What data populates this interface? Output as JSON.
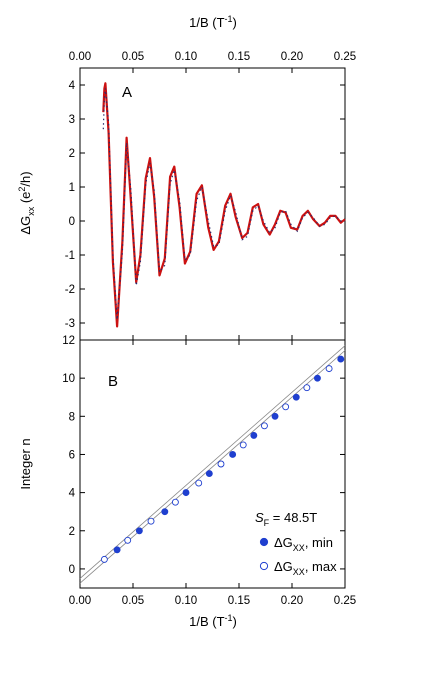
{
  "figure": {
    "top_axis_label": "1/B (T",
    "top_axis_label_sup": "-1",
    "top_axis_label_end": ")",
    "bottom_axis_label": "1/B (T",
    "bottom_axis_label_sup": "-1",
    "bottom_axis_label_end": ")"
  },
  "chart_data": [
    {
      "panel": "A",
      "type": "line",
      "ylabel_main": "ΔG",
      "ylabel_sub": "xx",
      "ylabel_units": " (e",
      "ylabel_units_sup": "2",
      "ylabel_units_end": "/h)",
      "xlim": [
        0.0,
        0.25
      ],
      "ylim": [
        -3.5,
        4.5
      ],
      "x_ticks": [
        "0.00",
        "0.05",
        "0.10",
        "0.15",
        "0.20",
        "0.25"
      ],
      "y_ticks": [
        "-3",
        "-2",
        "-1",
        "0",
        "1",
        "2",
        "3",
        "4"
      ],
      "x_tick_values": [
        0.0,
        0.05,
        0.1,
        0.15,
        0.2,
        0.25
      ],
      "y_tick_values": [
        -3,
        -2,
        -1,
        0,
        1,
        2,
        3,
        4
      ],
      "grid": false,
      "colors": {
        "fit": "#cc1111",
        "data": "#2a2a6a"
      },
      "series": [
        {
          "style": "solid-red",
          "x": [
            0.022,
            0.023,
            0.024,
            0.027,
            0.031,
            0.035,
            0.04,
            0.044,
            0.048,
            0.053,
            0.057,
            0.062,
            0.066,
            0.07,
            0.075,
            0.08,
            0.085,
            0.089,
            0.094,
            0.099,
            0.104,
            0.11,
            0.115,
            0.121,
            0.126,
            0.131,
            0.137,
            0.142,
            0.147,
            0.153,
            0.158,
            0.163,
            0.168,
            0.173,
            0.179,
            0.184,
            0.189,
            0.194,
            0.199,
            0.205,
            0.21,
            0.215,
            0.22,
            0.226,
            0.231,
            0.236,
            0.241,
            0.246,
            0.25
          ],
          "y": [
            3.2,
            3.9,
            4.05,
            2.6,
            -1.2,
            -3.1,
            -0.6,
            2.45,
            0.6,
            -1.8,
            -1.0,
            1.25,
            1.85,
            0.7,
            -1.6,
            -1.1,
            1.3,
            1.6,
            0.4,
            -1.25,
            -0.9,
            0.8,
            1.05,
            -0.2,
            -0.85,
            -0.6,
            0.45,
            0.8,
            0.1,
            -0.5,
            -0.35,
            0.4,
            0.5,
            -0.1,
            -0.4,
            -0.1,
            0.3,
            0.25,
            -0.2,
            -0.25,
            0.15,
            0.3,
            0.05,
            -0.15,
            -0.05,
            0.15,
            0.15,
            -0.05,
            0.05
          ]
        },
        {
          "style": "dotted-data",
          "x": [
            0.022,
            0.023,
            0.024,
            0.027,
            0.031,
            0.035,
            0.04,
            0.044,
            0.048,
            0.053,
            0.057,
            0.062,
            0.066,
            0.07,
            0.075,
            0.08,
            0.085,
            0.089,
            0.094,
            0.099,
            0.104,
            0.11,
            0.115,
            0.121,
            0.126,
            0.131,
            0.137,
            0.142,
            0.147,
            0.153,
            0.158,
            0.163,
            0.168,
            0.173,
            0.179,
            0.184,
            0.189,
            0.194,
            0.199,
            0.205,
            0.21,
            0.215,
            0.22,
            0.226,
            0.231,
            0.236,
            0.241,
            0.246,
            0.25
          ],
          "y": [
            2.7,
            3.6,
            3.9,
            2.9,
            -1.0,
            -2.9,
            -0.9,
            2.3,
            0.9,
            -1.9,
            -1.2,
            1.1,
            1.7,
            0.9,
            -1.5,
            -1.3,
            1.1,
            1.5,
            0.6,
            -1.15,
            -1.0,
            0.6,
            1.0,
            0.0,
            -0.75,
            -0.7,
            0.3,
            0.75,
            0.25,
            -0.55,
            -0.45,
            0.3,
            0.45,
            0.0,
            -0.35,
            -0.2,
            0.25,
            0.3,
            -0.1,
            -0.3,
            0.1,
            0.25,
            0.1,
            -0.15,
            -0.1,
            0.1,
            0.15,
            0.0,
            0.0
          ]
        }
      ]
    },
    {
      "panel": "B",
      "type": "scatter",
      "ylabel": "Integer n",
      "xlim": [
        0.0,
        0.25
      ],
      "ylim": [
        -1,
        12
      ],
      "x_ticks": [
        "0.00",
        "0.05",
        "0.10",
        "0.15",
        "0.20",
        "0.25"
      ],
      "y_ticks": [
        "0",
        "2",
        "4",
        "6",
        "8",
        "10",
        "12"
      ],
      "x_tick_values": [
        0.0,
        0.05,
        0.1,
        0.15,
        0.2,
        0.25
      ],
      "y_tick_values": [
        0,
        2,
        4,
        6,
        8,
        10,
        12
      ],
      "grid": false,
      "colors": {
        "points": "#1f3fcf",
        "fit_line": "#888888"
      },
      "annotation": {
        "symbol": "S",
        "sub": "F",
        "value": " = 48.5T"
      },
      "legend": {
        "position": "bottom-right"
      },
      "fit_lines": [
        {
          "x": [
            0.0,
            0.25
          ],
          "y": [
            -0.5,
            11.7
          ]
        },
        {
          "x": [
            0.0,
            0.25
          ],
          "y": [
            -0.75,
            11.45
          ]
        }
      ],
      "series": [
        {
          "name_main": "ΔG",
          "name_sub": "XX",
          "name_suffix": ", min",
          "marker": "filled",
          "x": [
            0.035,
            0.056,
            0.08,
            0.1,
            0.122,
            0.144,
            0.164,
            0.184,
            0.204,
            0.224,
            0.246
          ],
          "y": [
            1,
            2,
            3,
            4,
            5,
            6,
            7,
            8,
            9,
            10,
            11
          ]
        },
        {
          "name_main": "ΔG",
          "name_sub": "XX",
          "name_suffix": ", max",
          "marker": "open",
          "x": [
            0.023,
            0.045,
            0.067,
            0.09,
            0.112,
            0.133,
            0.154,
            0.174,
            0.194,
            0.214,
            0.235
          ],
          "y": [
            0.5,
            1.5,
            2.5,
            3.5,
            4.5,
            5.5,
            6.5,
            7.5,
            8.5,
            9.5,
            10.5
          ]
        }
      ]
    }
  ]
}
